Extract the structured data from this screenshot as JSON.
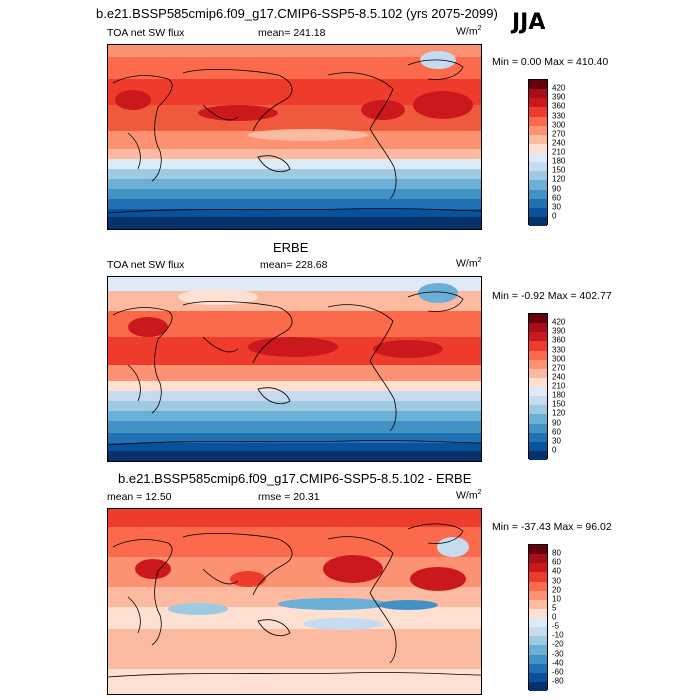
{
  "top_title": "b.e21.BSSP585cmip6.f09_g17.CMIP6-SSP5-8.5.102 (yrs 2075-2099)",
  "season": "JJA",
  "panels": [
    {
      "label_left": "TOA net SW flux",
      "label_mid": "mean= 241.18",
      "units": "W/m",
      "units_sup": "2",
      "minmax": "Min =   0.00 Max = 410.40",
      "colorbar_labels": [
        "420",
        "390",
        "360",
        "330",
        "300",
        "270",
        "240",
        "210",
        "180",
        "150",
        "120",
        "90",
        "60",
        "30",
        "0"
      ]
    },
    {
      "center_title": "ERBE",
      "label_left": "TOA net SW flux",
      "label_mid": "mean= 228.68",
      "units": "W/m",
      "units_sup": "2",
      "minmax": "Min =  -0.92 Max = 402.77",
      "colorbar_labels": [
        "420",
        "390",
        "360",
        "330",
        "300",
        "270",
        "240",
        "210",
        "180",
        "150",
        "120",
        "90",
        "60",
        "30",
        "0"
      ]
    },
    {
      "center_title": "b.e21.BSSP585cmip6.f09_g17.CMIP6-SSP5-8.5.102 - ERBE",
      "label_left": "mean =  12.50",
      "label_mid": "rmse =  20.31",
      "units": "W/m",
      "units_sup": "2",
      "minmax": "Min = -37.43 Max =  96.02",
      "colorbar_labels": [
        "80",
        "60",
        "40",
        "30",
        "20",
        "10",
        "5",
        "0",
        "-5",
        "-10",
        "-20",
        "-30",
        "-40",
        "-60",
        "-80"
      ]
    }
  ],
  "colors": {
    "abs_scale": [
      "#67000d",
      "#a50f15",
      "#cb181d",
      "#ef3b2c",
      "#fb6a4a",
      "#fc9272",
      "#fcbba1",
      "#fee0d2",
      "#deebf7",
      "#c6dbef",
      "#9ecae1",
      "#6baed6",
      "#4292c6",
      "#2171b5",
      "#08519c",
      "#08306b"
    ],
    "diff_scale": [
      "#67000d",
      "#a50f15",
      "#cb181d",
      "#ef3b2c",
      "#fb6a4a",
      "#fc9272",
      "#fcbba1",
      "#fee0d2",
      "#deebf7",
      "#c6dbef",
      "#9ecae1",
      "#6baed6",
      "#4292c6",
      "#2171b5",
      "#08519c",
      "#08306b"
    ]
  }
}
